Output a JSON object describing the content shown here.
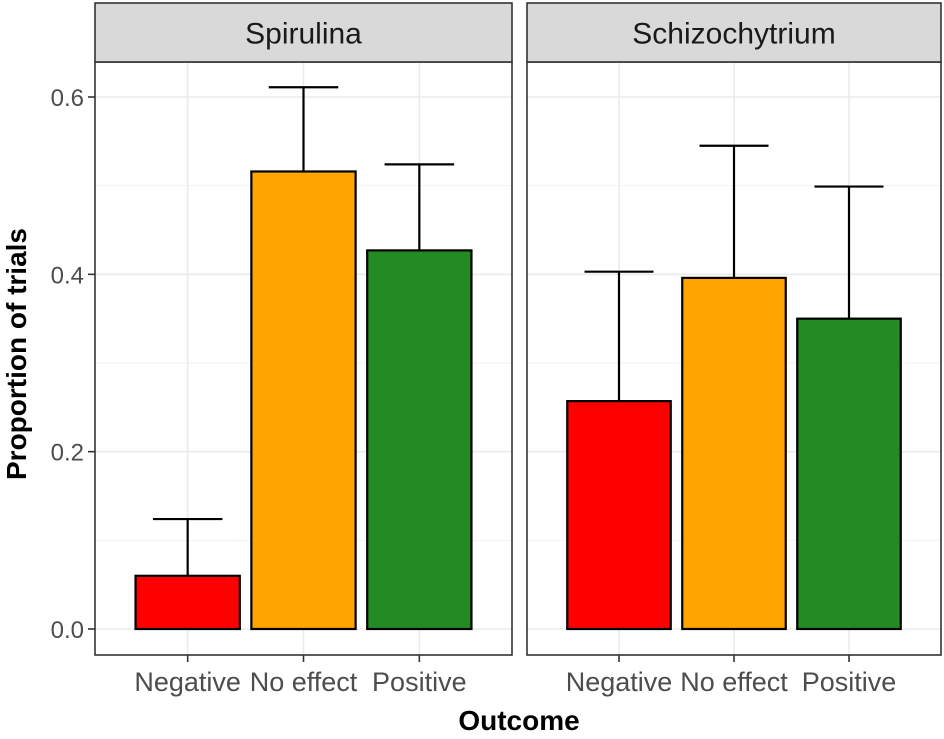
{
  "chart_data": {
    "type": "bar",
    "facet_by": "Feed",
    "categories": [
      "Negative",
      "No effect",
      "Positive"
    ],
    "colors": {
      "Negative": "#ff0000",
      "No effect": "#ffa500",
      "Positive": "#228b22"
    },
    "xlabel": "Outcome",
    "ylabel": "Proportion of trials",
    "ylim": [
      0,
      0.65
    ],
    "yticks": [
      0.0,
      0.2,
      0.4,
      0.6
    ],
    "ytick_labels": [
      "0.0",
      "0.2",
      "0.4",
      "0.6"
    ],
    "grid": true,
    "error_bars": "upper",
    "panels": [
      {
        "title": "Spirulina",
        "values": [
          0.06,
          0.516,
          0.427
        ],
        "upper": [
          0.124,
          0.611,
          0.524
        ]
      },
      {
        "title": "Schizochytrium",
        "values": [
          0.257,
          0.396,
          0.35
        ],
        "upper": [
          0.403,
          0.545,
          0.499
        ]
      }
    ]
  }
}
